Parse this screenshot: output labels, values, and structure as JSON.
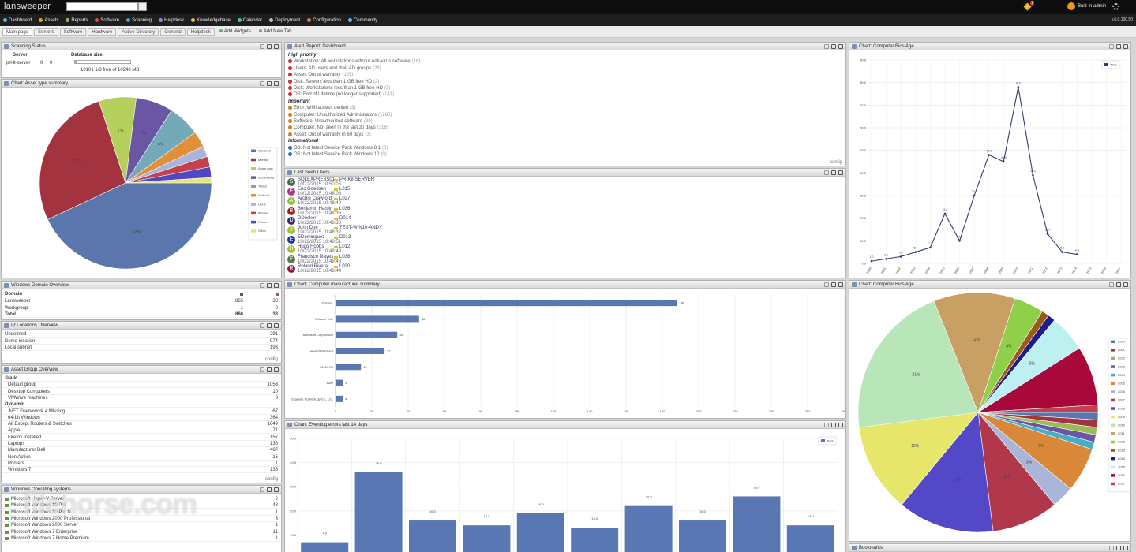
{
  "topbar": {
    "logo": "lansweeper",
    "notifications": "1",
    "user": "Built-in admin",
    "version": "v.6.0.100.50",
    "nav": [
      "Dashboard",
      "Assets",
      "Reports",
      "Software",
      "Scanning",
      "Helpdesk",
      "Knowledgebase",
      "Calendar",
      "Deployment",
      "Configuration",
      "Community"
    ]
  },
  "tabs": [
    "Main page",
    "Servers",
    "Software",
    "Hardware",
    "Active Directory",
    "General",
    "Helpdesk"
  ],
  "tab_actions": [
    "Add Widgets",
    "Add New Tab"
  ],
  "watermark": "filehorse.com",
  "widgets": {
    "scanning_status": {
      "title": "Scanning Status",
      "server_label": "Server",
      "db_label": "Database size:",
      "server": "prl-lt-server",
      "counts": [
        0,
        0
      ],
      "db_info": "10101 1/3 free of 10240 MB"
    },
    "asset_type": {
      "title": "Chart: Asset type summary",
      "type": "pie",
      "categories": [
        "Windows",
        "Monitor",
        "Apple mac",
        "iOS iPhone",
        "Tablet",
        "Android",
        "Linux",
        "iPhone",
        "Printer",
        "Other"
      ],
      "values": [
        43,
        27,
        7,
        7,
        6,
        3,
        2,
        2,
        2,
        1
      ],
      "value_labels": [
        "43%",
        "27%",
        "7%",
        "7%",
        "6%",
        null,
        null,
        null,
        null,
        null
      ],
      "colors": [
        "#5b76ac",
        "#a3343f",
        "#b5cf5d",
        "#6a56a3",
        "#74a9b8",
        "#e0903a",
        "#a9b6d9",
        "#c4404a",
        "#5146c4",
        "#e5e57a"
      ]
    },
    "domain_overview": {
      "title": "Windows Domain Overview",
      "header": "Domain",
      "rows": [
        [
          "Lansweeper",
          865,
          38
        ],
        [
          "Workgroup",
          1,
          0
        ]
      ],
      "total": [
        "Total",
        866,
        38
      ]
    },
    "ip_locations": {
      "title": "IP Locations Overview",
      "rows": [
        [
          "Undefined",
          291
        ],
        [
          "Demo location",
          974
        ],
        [
          "Local subnet",
          193
        ]
      ],
      "footer": "config"
    },
    "asset_groups": {
      "title": "Asset Group Overview",
      "sections": [
        {
          "heading": "Static",
          "rows": [
            [
              "Default group",
              1053
            ],
            [
              "Desktop Computers",
              10
            ],
            [
              "VMWare machines",
              3
            ]
          ]
        },
        {
          "heading": "Dynamic",
          "rows": [
            [
              ".NET Framework 4 Missing",
              67
            ],
            [
              "64-bit Windows",
              364
            ],
            [
              "All Except Routers & Switches",
              1049
            ],
            [
              "Apple",
              71
            ],
            [
              "Firefox Installed",
              157
            ],
            [
              "Laptops",
              138
            ],
            [
              "Manufacturer Dell",
              487
            ],
            [
              "Non Active",
              15
            ],
            [
              "Printers",
              1
            ],
            [
              "Windows 7",
              136
            ]
          ]
        }
      ],
      "footer": "config"
    },
    "windows_os": {
      "title": "Windows Operating systems",
      "rows": [
        [
          "Microsoft Hyper-V Server",
          2
        ],
        [
          "Microsoft Windows 10 Pro",
          48
        ],
        [
          "Microsoft Windows 10 Pro N",
          1
        ],
        [
          "Microsoft Windows 2000 Professional",
          3
        ],
        [
          "Microsoft Windows 2000 Server",
          1
        ],
        [
          "Microsoft Windows 7 Enterprise",
          11
        ],
        [
          "Microsoft Windows 7 Home Premium",
          1
        ]
      ]
    },
    "alert_report": {
      "title": "Alert Report: Dashboard",
      "sections": [
        {
          "heading": "High priority",
          "items": [
            [
              "Workstation: All workstations without Anti-virus software",
              "(16)"
            ],
            [
              "Users: AD users and their AD groups",
              "(26)"
            ],
            [
              "Asset: Out of warranty",
              "(197)"
            ],
            [
              "Disk: Servers less than 1 GB free HD",
              "(2)"
            ],
            [
              "Disk: Workstations less than 1 GB free HD",
              "(3)"
            ],
            [
              "OS: End of Lifetime (no longer supported)",
              "(141)"
            ]
          ]
        },
        {
          "heading": "Important",
          "items": [
            [
              "Error: WMI access denied",
              "(3)"
            ],
            [
              "Computer: Unauthorized Administrators",
              "(1285)"
            ],
            [
              "Software: Unauthorized software",
              "(39)"
            ],
            [
              "Computer: Not seen in the last 30 days",
              "(316)"
            ],
            [
              "Asset: Out of warranty in 60 days",
              "(3)"
            ]
          ]
        },
        {
          "heading": "Informational",
          "items": [
            [
              "OS: Not latest Service Pack Windows 8.1",
              "(0)"
            ],
            [
              "OS: Not latest Service Pack Windows 10",
              "(0)"
            ]
          ]
        }
      ],
      "footer": "config"
    },
    "last_seen_users": {
      "title": "Last Seen Users",
      "users": [
        {
          "initial": "S",
          "name": "SQLEXPRESS01",
          "date": "10/22/2015 10:50:05",
          "computer": "PR-K8-SERVER"
        },
        {
          "initial": "E",
          "name": "Eric Goedsen",
          "date": "10/22/2015 10:48:06",
          "computer": "L015"
        },
        {
          "initial": "A",
          "name": "Archie Crawford",
          "date": "10/22/2015 10:48:40",
          "computer": "L027"
        },
        {
          "initial": "B",
          "name": "Benjamin Hardy",
          "date": "10/22/2015 10:48:36",
          "computer": "L036"
        },
        {
          "initial": "D",
          "name": "DDecker",
          "date": "10/22/2015 10:48:30",
          "computer": "D014"
        },
        {
          "initial": "J",
          "name": "John Doe",
          "date": "10/22/2015 10:48:32",
          "computer": "TEST-WIN10-ANDY"
        },
        {
          "initial": "E",
          "name": "EDominguez",
          "date": "10/22/2015 10:48:51",
          "computer": "D013"
        },
        {
          "initial": "H",
          "name": "Hugo Hobbs",
          "date": "10/22/2015 10:48:49",
          "computer": "L012"
        },
        {
          "initial": "F",
          "name": "Francisco Mayes",
          "date": "10/22/2015 10:48:46",
          "computer": "L038"
        },
        {
          "initial": "R",
          "name": "Roland Rivera",
          "date": "10/22/2015 10:48:44",
          "computer": "L030"
        }
      ]
    },
    "manufacturer": {
      "title": "Chart: Computer manufacturer summary",
      "type": "bar",
      "orientation": "horizontal",
      "color": "#5877b3",
      "categories": [
        "Dell Inc.",
        "VMware, Inc.",
        "Microsoft Corporation",
        "Hewlett-Packard",
        "LENOVO",
        "Acer",
        "Gigabyte Technology Co., Ltd."
      ],
      "values": [
        188,
        46,
        34,
        27,
        14,
        4,
        4
      ],
      "xlim": [
        0,
        280
      ],
      "xticks": [
        0,
        20,
        40,
        60,
        80,
        100,
        120,
        140,
        160,
        180,
        200,
        220,
        240,
        260,
        280
      ],
      "grid": true
    },
    "eventlog": {
      "title": "Chart: Eventlog errors last 14 days",
      "type": "bar",
      "color": "#5877b3",
      "legend": "Total",
      "values": [
        7,
        36,
        16,
        14,
        19,
        13,
        22,
        16,
        26,
        14
      ],
      "value_labels": [
        "7.0",
        "36.0",
        "16.0",
        "14.0",
        "19.0",
        "13.0",
        "22.0",
        "16.0",
        "26.0",
        "14.0"
      ],
      "ylim": [
        0,
        50
      ],
      "yticks": [
        {
          "value": 0,
          "label": "0.0"
        },
        {
          "value": 10,
          "label": "10.0"
        },
        {
          "value": 20,
          "label": "20.0"
        },
        {
          "value": 30,
          "label": "30.0"
        },
        {
          "value": 40,
          "label": "40.0"
        },
        {
          "value": 50,
          "label": "50.0"
        }
      ],
      "grid": true
    },
    "bios_line": {
      "title": "Chart: Computer Bios Age",
      "type": "line",
      "color": "#2d3e6e",
      "legend": "Total",
      "categories": [
        "2000",
        "2001",
        "2002",
        "2003",
        "2004",
        "2005",
        "2006",
        "2007",
        "2008",
        "2009",
        "2010",
        "2011",
        "2012",
        "2013",
        "2014",
        "2015",
        "2016",
        "2017"
      ],
      "values": [
        1,
        2,
        3,
        5,
        7,
        22,
        10,
        30,
        48,
        45,
        78,
        39,
        13,
        5,
        4,
        null,
        null,
        null
      ],
      "value_labels": [
        "1.0",
        "2.0",
        "3.0",
        "5.0",
        "7.0",
        "22.0",
        "10.0",
        "30.0",
        "48.0",
        "45.0",
        "78.0",
        "39.0",
        "13.0",
        "5.0",
        "4.0",
        null,
        null,
        null
      ],
      "ylim": [
        0,
        90
      ],
      "yticks": [
        {
          "value": 0,
          "label": "0.0"
        },
        {
          "value": 10,
          "label": "10.0"
        },
        {
          "value": 20,
          "label": "20.0"
        },
        {
          "value": 30,
          "label": "30.0"
        },
        {
          "value": 40,
          "label": "40.0"
        },
        {
          "value": 50,
          "label": "50.0"
        },
        {
          "value": 60,
          "label": "60.0"
        },
        {
          "value": 70,
          "label": "70.0"
        },
        {
          "value": 80,
          "label": "80.0"
        },
        {
          "value": 90,
          "label": "90.0"
        }
      ],
      "grid": true
    },
    "bios_pie": {
      "title": "Chart: Computer Bios Age",
      "type": "pie",
      "categories": [
        "2000",
        "2001",
        "2002",
        "2003",
        "2004",
        "2005",
        "2006",
        "2007",
        "2008",
        "2009",
        "2010",
        "2011",
        "2012",
        "2013",
        "2014",
        "2015",
        "2016",
        "2017"
      ],
      "values": [
        1,
        1,
        1,
        1,
        1,
        6,
        3,
        9,
        13,
        12,
        21,
        11,
        4,
        1,
        1,
        5,
        8,
        1
      ],
      "value_labels": [
        null,
        null,
        null,
        null,
        null,
        "6%",
        "3%",
        "9%",
        "13%",
        "12%",
        "21%",
        "11%",
        "4%",
        null,
        null,
        "5%",
        null,
        null
      ],
      "colors": [
        "#5b76ac",
        "#a3343f",
        "#9bbb59",
        "#6a56a3",
        "#4bacc6",
        "#d9883a",
        "#a9b6d9",
        "#b0384a",
        "#5248c8",
        "#e6e66a",
        "#b8e6b8",
        "#c8a064",
        "#8fcf4a",
        "#9a5a1a",
        "#1c1c8c",
        "#bdf0f0",
        "#a8083a",
        "#c04050"
      ]
    },
    "bookmarks": {
      "title": "Bookmarks"
    }
  }
}
